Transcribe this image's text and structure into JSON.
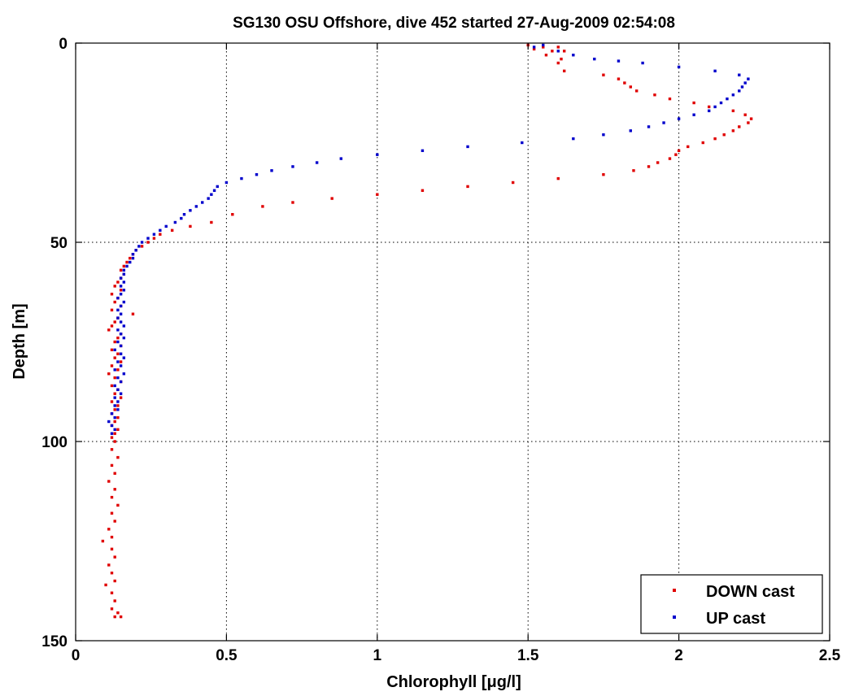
{
  "chart_data": {
    "type": "scatter",
    "title": "SG130 OSU Offshore, dive 452 started 27-Aug-2009 02:54:08",
    "xlabel": "Chlorophyll [μg/l]",
    "ylabel": "Depth [m]",
    "xlim": [
      0,
      2.5
    ],
    "ylim": [
      0,
      150
    ],
    "y_reversed": true,
    "grid": true,
    "legend_position": "bottom-right",
    "x_ticks": [
      0,
      0.5,
      1,
      1.5,
      2,
      2.5
    ],
    "x_tick_labels": [
      "0",
      "0.5",
      "1",
      "1.5",
      "2",
      "2.5"
    ],
    "y_ticks": [
      0,
      50,
      100,
      150
    ],
    "y_tick_labels": [
      "0",
      "50",
      "100",
      "150"
    ],
    "series": [
      {
        "name": "DOWN cast",
        "color": "#e00000",
        "points": [
          [
            1.5,
            0.5
          ],
          [
            1.52,
            1.5
          ],
          [
            1.55,
            1
          ],
          [
            1.58,
            2
          ],
          [
            1.56,
            3
          ],
          [
            1.6,
            1
          ],
          [
            1.62,
            2
          ],
          [
            1.61,
            4
          ],
          [
            1.6,
            5
          ],
          [
            1.62,
            7
          ],
          [
            1.75,
            8
          ],
          [
            1.8,
            9
          ],
          [
            1.82,
            10
          ],
          [
            1.84,
            11
          ],
          [
            1.86,
            12
          ],
          [
            1.92,
            13
          ],
          [
            1.97,
            14
          ],
          [
            2.05,
            15
          ],
          [
            2.1,
            16
          ],
          [
            2.18,
            17
          ],
          [
            2.22,
            18
          ],
          [
            2.24,
            19
          ],
          [
            2.23,
            20
          ],
          [
            2.2,
            21
          ],
          [
            2.18,
            22
          ],
          [
            2.15,
            23
          ],
          [
            2.12,
            24
          ],
          [
            2.08,
            25
          ],
          [
            2.03,
            26
          ],
          [
            2.0,
            27
          ],
          [
            1.99,
            28
          ],
          [
            1.97,
            29
          ],
          [
            1.93,
            30
          ],
          [
            1.9,
            31
          ],
          [
            1.85,
            32
          ],
          [
            1.75,
            33
          ],
          [
            1.6,
            34
          ],
          [
            1.45,
            35
          ],
          [
            1.3,
            36
          ],
          [
            1.15,
            37
          ],
          [
            1.0,
            38
          ],
          [
            0.85,
            39
          ],
          [
            0.72,
            40
          ],
          [
            0.62,
            41
          ],
          [
            0.52,
            43
          ],
          [
            0.45,
            45
          ],
          [
            0.38,
            46
          ],
          [
            0.32,
            47
          ],
          [
            0.28,
            48
          ],
          [
            0.26,
            49
          ],
          [
            0.24,
            50
          ],
          [
            0.22,
            51
          ],
          [
            0.2,
            52
          ],
          [
            0.19,
            53
          ],
          [
            0.18,
            54
          ],
          [
            0.17,
            55
          ],
          [
            0.16,
            56
          ],
          [
            0.15,
            57
          ],
          [
            0.16,
            58
          ],
          [
            0.15,
            59
          ],
          [
            0.14,
            60
          ],
          [
            0.13,
            61
          ],
          [
            0.15,
            62
          ],
          [
            0.12,
            63
          ],
          [
            0.14,
            64
          ],
          [
            0.13,
            65
          ],
          [
            0.15,
            66
          ],
          [
            0.12,
            67
          ],
          [
            0.19,
            68
          ],
          [
            0.14,
            69
          ],
          [
            0.13,
            70
          ],
          [
            0.12,
            71
          ],
          [
            0.11,
            72
          ],
          [
            0.15,
            73
          ],
          [
            0.14,
            74
          ],
          [
            0.13,
            75
          ],
          [
            0.15,
            76
          ],
          [
            0.12,
            77
          ],
          [
            0.14,
            78
          ],
          [
            0.13,
            79
          ],
          [
            0.15,
            80
          ],
          [
            0.12,
            81
          ],
          [
            0.14,
            82
          ],
          [
            0.11,
            83
          ],
          [
            0.13,
            84
          ],
          [
            0.15,
            85
          ],
          [
            0.12,
            86
          ],
          [
            0.14,
            87
          ],
          [
            0.13,
            88
          ],
          [
            0.15,
            89
          ],
          [
            0.12,
            90
          ],
          [
            0.14,
            91
          ],
          [
            0.13,
            92
          ],
          [
            0.12,
            93
          ],
          [
            0.14,
            94
          ],
          [
            0.13,
            95
          ],
          [
            0.12,
            96
          ],
          [
            0.14,
            97
          ],
          [
            0.13,
            98
          ],
          [
            0.12,
            99
          ],
          [
            0.13,
            100
          ],
          [
            0.12,
            102
          ],
          [
            0.14,
            104
          ],
          [
            0.12,
            106
          ],
          [
            0.13,
            108
          ],
          [
            0.11,
            110
          ],
          [
            0.13,
            112
          ],
          [
            0.12,
            114
          ],
          [
            0.14,
            116
          ],
          [
            0.12,
            118
          ],
          [
            0.13,
            120
          ],
          [
            0.11,
            122
          ],
          [
            0.12,
            124
          ],
          [
            0.09,
            125
          ],
          [
            0.12,
            127
          ],
          [
            0.13,
            129
          ],
          [
            0.11,
            131
          ],
          [
            0.12,
            133
          ],
          [
            0.13,
            135
          ],
          [
            0.1,
            136
          ],
          [
            0.12,
            138
          ],
          [
            0.13,
            140
          ],
          [
            0.12,
            142
          ],
          [
            0.14,
            143
          ],
          [
            0.13,
            144
          ],
          [
            0.15,
            144
          ]
        ]
      },
      {
        "name": "UP cast",
        "color": "#0000cc",
        "points": [
          [
            1.55,
            0.5
          ],
          [
            1.52,
            1
          ],
          [
            1.6,
            2
          ],
          [
            1.65,
            3
          ],
          [
            1.72,
            4
          ],
          [
            1.8,
            4.5
          ],
          [
            1.88,
            5
          ],
          [
            2.0,
            6
          ],
          [
            2.12,
            7
          ],
          [
            2.2,
            8
          ],
          [
            2.23,
            9
          ],
          [
            2.22,
            10
          ],
          [
            2.21,
            11
          ],
          [
            2.2,
            12
          ],
          [
            2.18,
            13
          ],
          [
            2.16,
            14
          ],
          [
            2.14,
            15
          ],
          [
            2.12,
            16
          ],
          [
            2.1,
            17
          ],
          [
            2.05,
            18
          ],
          [
            2.0,
            19
          ],
          [
            1.95,
            20
          ],
          [
            1.9,
            21
          ],
          [
            1.84,
            22
          ],
          [
            1.75,
            23
          ],
          [
            1.65,
            24
          ],
          [
            1.48,
            25
          ],
          [
            1.3,
            26
          ],
          [
            1.15,
            27
          ],
          [
            1.0,
            28
          ],
          [
            0.88,
            29
          ],
          [
            0.8,
            30
          ],
          [
            0.72,
            31
          ],
          [
            0.65,
            32
          ],
          [
            0.6,
            33
          ],
          [
            0.55,
            34
          ],
          [
            0.5,
            35
          ],
          [
            0.47,
            36
          ],
          [
            0.46,
            37
          ],
          [
            0.45,
            38
          ],
          [
            0.44,
            39
          ],
          [
            0.42,
            40
          ],
          [
            0.4,
            41
          ],
          [
            0.38,
            42
          ],
          [
            0.36,
            43
          ],
          [
            0.35,
            44
          ],
          [
            0.33,
            45
          ],
          [
            0.3,
            46
          ],
          [
            0.28,
            47
          ],
          [
            0.26,
            48
          ],
          [
            0.24,
            49
          ],
          [
            0.22,
            50
          ],
          [
            0.21,
            51
          ],
          [
            0.2,
            52
          ],
          [
            0.19,
            53
          ],
          [
            0.19,
            54
          ],
          [
            0.18,
            55
          ],
          [
            0.17,
            56
          ],
          [
            0.16,
            57
          ],
          [
            0.16,
            58
          ],
          [
            0.15,
            59
          ],
          [
            0.16,
            60
          ],
          [
            0.15,
            61
          ],
          [
            0.16,
            62
          ],
          [
            0.15,
            63
          ],
          [
            0.14,
            64
          ],
          [
            0.16,
            65
          ],
          [
            0.15,
            66
          ],
          [
            0.14,
            67
          ],
          [
            0.15,
            68
          ],
          [
            0.14,
            69
          ],
          [
            0.15,
            70
          ],
          [
            0.16,
            71
          ],
          [
            0.14,
            72
          ],
          [
            0.15,
            73
          ],
          [
            0.16,
            74
          ],
          [
            0.14,
            75
          ],
          [
            0.15,
            76
          ],
          [
            0.13,
            77
          ],
          [
            0.15,
            78
          ],
          [
            0.16,
            79
          ],
          [
            0.14,
            80
          ],
          [
            0.15,
            81
          ],
          [
            0.13,
            82
          ],
          [
            0.16,
            83
          ],
          [
            0.14,
            84
          ],
          [
            0.15,
            85
          ],
          [
            0.13,
            86
          ],
          [
            0.14,
            87
          ],
          [
            0.15,
            88
          ],
          [
            0.13,
            89
          ],
          [
            0.14,
            90
          ],
          [
            0.13,
            91
          ],
          [
            0.14,
            92
          ],
          [
            0.12,
            93
          ],
          [
            0.13,
            94
          ],
          [
            0.11,
            95
          ],
          [
            0.12,
            96
          ],
          [
            0.13,
            97
          ],
          [
            0.12,
            98
          ]
        ]
      }
    ]
  }
}
